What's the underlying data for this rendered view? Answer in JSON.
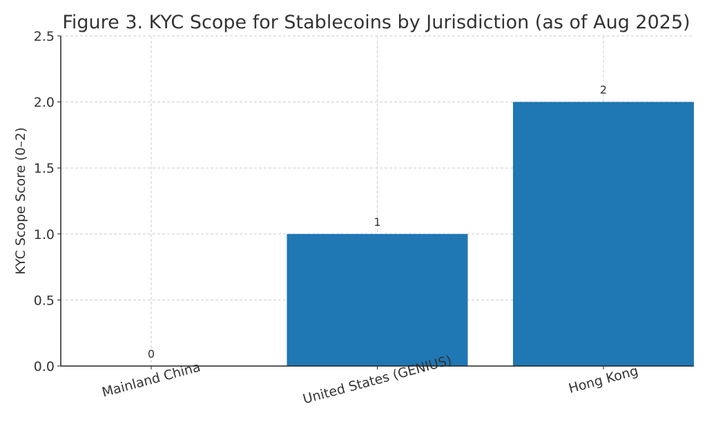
{
  "chart_data": {
    "type": "bar",
    "title": "Figure 3. KYC Scope for Stablecoins by Jurisdiction (as of Aug 2025)",
    "xlabel": "",
    "ylabel": "KYC Scope Score (0–2)",
    "categories": [
      "Mainland China",
      "United States (GENIUS)",
      "Hong Kong"
    ],
    "values": [
      0,
      1,
      2
    ],
    "data_labels": [
      "0",
      "1",
      "2"
    ],
    "ylim": [
      0,
      2.5
    ],
    "yticks": [
      "0.0",
      "0.5",
      "1.0",
      "1.5",
      "2.0",
      "2.5"
    ],
    "grid": true,
    "bar_color": "#1f77b4"
  }
}
